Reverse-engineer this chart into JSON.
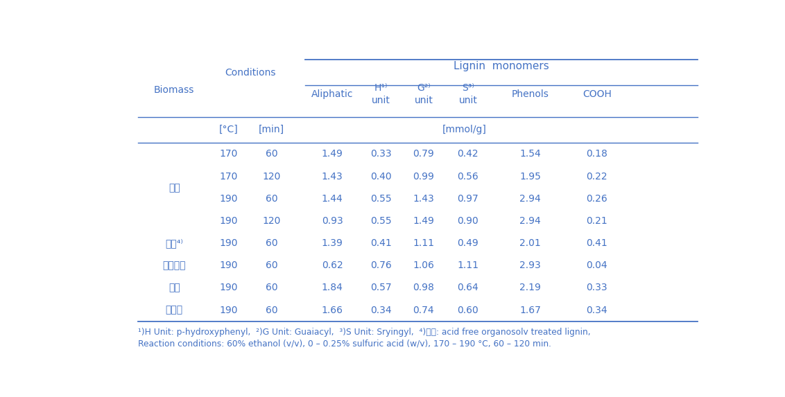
{
  "text_color": "#4472C4",
  "line_color": "#4472C4",
  "background": "#ffffff",
  "header1": "Lignin  monomers",
  "header_biomass": "Biomass",
  "header_conditions": "Conditions",
  "header_temp": "[°C]",
  "header_time": "[min]",
  "header_unit": "[mmol/g]",
  "col_headers_line1": [
    "Aliphatic",
    "H¹⁾",
    "G²⁾",
    "S³⁾",
    "Phenols",
    "COOH"
  ],
  "col_headers_line2": [
    "",
    "unit",
    "unit",
    "unit",
    "",
    ""
  ],
  "rows": [
    {
      "biomass": "왕거",
      "temp": "170",
      "time": "60",
      "vals": [
        "1.49",
        "0.33",
        "0.79",
        "0.42",
        "1.54",
        "0.18"
      ]
    },
    {
      "biomass": "",
      "temp": "170",
      "time": "120",
      "vals": [
        "1.43",
        "0.40",
        "0.99",
        "0.56",
        "1.95",
        "0.22"
      ]
    },
    {
      "biomass": "",
      "temp": "190",
      "time": "60",
      "vals": [
        "1.44",
        "0.55",
        "1.43",
        "0.97",
        "2.94",
        "0.26"
      ]
    },
    {
      "biomass": "",
      "temp": "190",
      "time": "120",
      "vals": [
        "0.93",
        "0.55",
        "1.49",
        "0.90",
        "2.94",
        "0.21"
      ]
    },
    {
      "biomass": "왕거⁴⁾",
      "temp": "190",
      "time": "60",
      "vals": [
        "1.39",
        "0.41",
        "1.11",
        "0.49",
        "2.01",
        "0.41"
      ]
    },
    {
      "biomass": "거대역새",
      "temp": "190",
      "time": "60",
      "vals": [
        "0.62",
        "0.76",
        "1.06",
        "1.11",
        "2.93",
        "0.04"
      ]
    },
    {
      "biomass": "볶질",
      "temp": "190",
      "time": "60",
      "vals": [
        "1.84",
        "0.57",
        "0.98",
        "0.64",
        "2.19",
        "0.33"
      ]
    },
    {
      "biomass": "보릿질",
      "temp": "190",
      "time": "60",
      "vals": [
        "1.66",
        "0.34",
        "0.74",
        "0.60",
        "1.67",
        "0.34"
      ]
    }
  ],
  "footnote1": "¹)H Unit: p-hydroxyphenyl,  ²)G Unit: Guaiacyl,  ³)S Unit: Sryingyl,  ⁴)왕거: acid free organosolv treated lignin,",
  "footnote2": "Reaction conditions: 60% ethanol (v/v), 0 – 0.25% sulfuric acid (w/v), 170 – 190 °C, 60 – 120 min.",
  "fig_width": 11.32,
  "fig_height": 5.73,
  "dpi": 100
}
